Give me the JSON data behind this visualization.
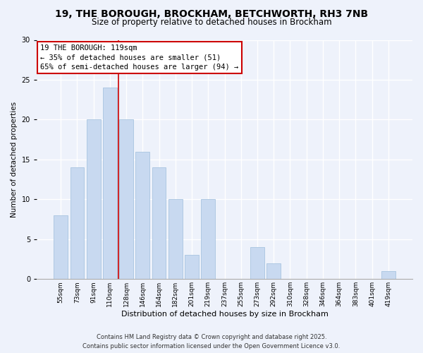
{
  "title1": "19, THE BOROUGH, BROCKHAM, BETCHWORTH, RH3 7NB",
  "title2": "Size of property relative to detached houses in Brockham",
  "xlabel": "Distribution of detached houses by size in Brockham",
  "ylabel": "Number of detached properties",
  "bar_labels": [
    "55sqm",
    "73sqm",
    "91sqm",
    "110sqm",
    "128sqm",
    "146sqm",
    "164sqm",
    "182sqm",
    "201sqm",
    "219sqm",
    "237sqm",
    "255sqm",
    "273sqm",
    "292sqm",
    "310sqm",
    "328sqm",
    "346sqm",
    "364sqm",
    "383sqm",
    "401sqm",
    "419sqm"
  ],
  "bar_values": [
    8,
    14,
    20,
    24,
    20,
    16,
    14,
    10,
    3,
    10,
    0,
    0,
    4,
    2,
    0,
    0,
    0,
    0,
    0,
    0,
    1
  ],
  "bar_color": "#c8d9f0",
  "bar_edge_color": "#a8c4e0",
  "annotation_box_title": "19 THE BOROUGH: 119sqm",
  "annotation_line1": "← 35% of detached houses are smaller (51)",
  "annotation_line2": "65% of semi-detached houses are larger (94) →",
  "vline_x": 3.5,
  "vline_color": "#cc0000",
  "ylim": [
    0,
    30
  ],
  "yticks": [
    0,
    5,
    10,
    15,
    20,
    25,
    30
  ],
  "footer1": "Contains HM Land Registry data © Crown copyright and database right 2025.",
  "footer2": "Contains public sector information licensed under the Open Government Licence v3.0.",
  "bg_color": "#eef2fb",
  "grid_color": "#ffffff",
  "title1_fontsize": 10,
  "title2_fontsize": 8.5,
  "ylabel_fontsize": 7.5,
  "xlabel_fontsize": 8,
  "tick_fontsize": 6.5,
  "annotation_fontsize": 7.5,
  "footer_fontsize": 6
}
